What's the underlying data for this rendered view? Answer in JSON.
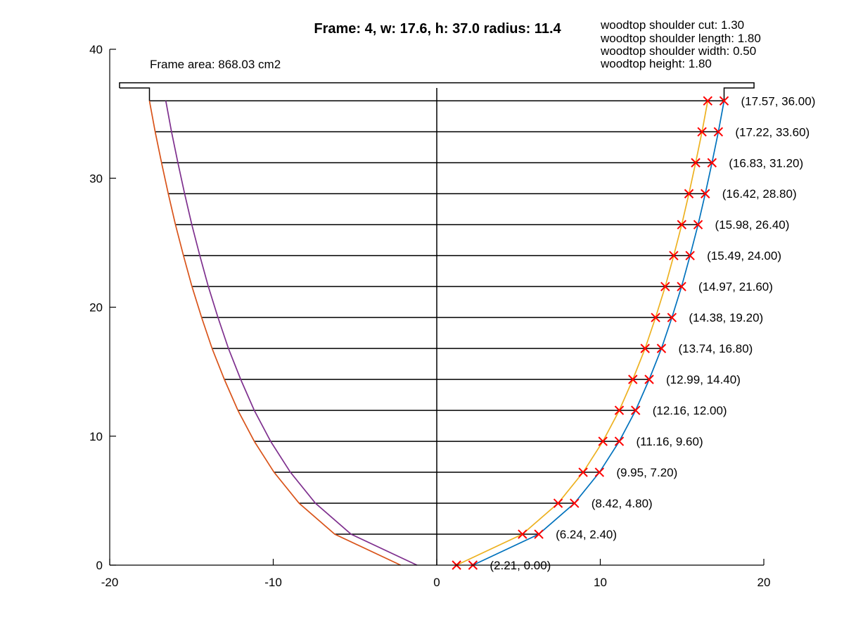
{
  "chart_data": {
    "type": "line",
    "title": "Frame: 4, w: 17.6, h: 37.0 radius: 11.4",
    "xlim": [
      -20,
      20
    ],
    "ylim": [
      0,
      40
    ],
    "xticks": [
      "-20",
      "-10",
      "0",
      "10",
      "20"
    ],
    "yticks": [
      "0",
      "10",
      "20",
      "30",
      "40"
    ],
    "xlabel": "",
    "ylabel": "",
    "grid": false,
    "colors": {
      "outer": "#0072bd",
      "inner": "#edb120",
      "outer_mirror": "#d95319",
      "inner_mirror": "#7e2f8e",
      "markers": "#ff0000",
      "ribs": "#000000"
    },
    "frame_area_label": "Frame area: 868.03 cm2",
    "woodtop_labels": [
      "woodtop shoulder cut: 1.30",
      "woodtop shoulder length: 1.80",
      "woodtop shoulder width: 0.50",
      "woodtop height: 1.80"
    ],
    "woodtop_outline": [
      [
        -19.4,
        37.0
      ],
      [
        -19.4,
        37.4
      ],
      [
        19.4,
        37.4
      ],
      [
        19.4,
        37.0
      ],
      [
        17.57,
        37.0
      ],
      [
        17.57,
        36.0
      ]
    ],
    "woodtop_outline_left": [
      [
        -19.4,
        37.0
      ],
      [
        -17.57,
        37.0
      ],
      [
        -17.57,
        36.0
      ]
    ],
    "axis_line": [
      [
        0,
        37.0
      ],
      [
        0,
        0
      ]
    ],
    "outer_points": [
      {
        "x": 2.21,
        "y": 0.0,
        "label": "(2.21, 0.00)"
      },
      {
        "x": 6.24,
        "y": 2.4,
        "label": "(6.24, 2.40)"
      },
      {
        "x": 8.42,
        "y": 4.8,
        "label": "(8.42, 4.80)"
      },
      {
        "x": 9.95,
        "y": 7.2,
        "label": "(9.95, 7.20)"
      },
      {
        "x": 11.16,
        "y": 9.6,
        "label": "(11.16, 9.60)"
      },
      {
        "x": 12.16,
        "y": 12.0,
        "label": "(12.16, 12.00)"
      },
      {
        "x": 12.99,
        "y": 14.4,
        "label": "(12.99, 14.40)"
      },
      {
        "x": 13.74,
        "y": 16.8,
        "label": "(13.74, 16.80)"
      },
      {
        "x": 14.38,
        "y": 19.2,
        "label": "(14.38, 19.20)"
      },
      {
        "x": 14.97,
        "y": 21.6,
        "label": "(14.97, 21.60)"
      },
      {
        "x": 15.49,
        "y": 24.0,
        "label": "(15.49, 24.00)"
      },
      {
        "x": 15.98,
        "y": 26.4,
        "label": "(15.98, 26.40)"
      },
      {
        "x": 16.42,
        "y": 28.8,
        "label": "(16.42, 28.80)"
      },
      {
        "x": 16.83,
        "y": 31.2,
        "label": "(16.83, 31.20)"
      },
      {
        "x": 17.22,
        "y": 33.6,
        "label": "(17.22, 33.60)"
      },
      {
        "x": 17.57,
        "y": 36.0,
        "label": "(17.57, 36.00)"
      }
    ],
    "inner_x": [
      1.21,
      5.24,
      7.42,
      8.95,
      10.16,
      11.16,
      11.99,
      12.74,
      13.38,
      13.97,
      14.49,
      14.98,
      15.42,
      15.83,
      16.22,
      16.57
    ],
    "outer_mirror_x": [
      -2.21,
      -6.24,
      -8.42,
      -9.95,
      -11.16,
      -12.16,
      -12.99,
      -13.74,
      -14.38,
      -14.97,
      -15.49,
      -15.98,
      -16.42,
      -16.83,
      -17.22,
      -17.57
    ],
    "inner_mirror_x": [
      -1.21,
      -5.24,
      -7.42,
      -8.95,
      -10.16,
      -11.16,
      -11.99,
      -12.74,
      -13.38,
      -13.97,
      -14.49,
      -14.98,
      -15.42,
      -15.83,
      -16.22,
      -16.57
    ]
  }
}
